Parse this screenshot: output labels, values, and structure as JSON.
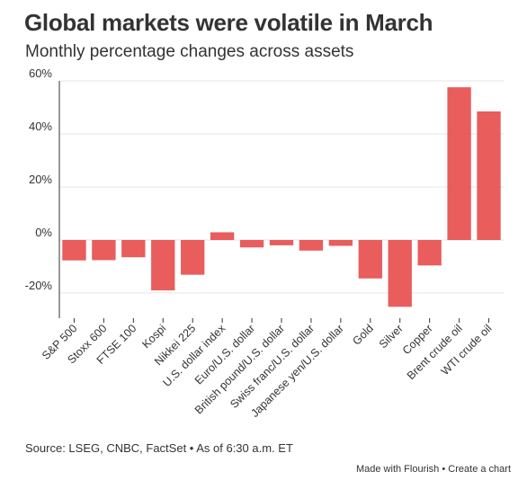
{
  "title": "Global markets were volatile in March",
  "subtitle": "Monthly percentage changes across assets",
  "source": "Source: LSEG, CNBC, FactSet • As of 6:30 a.m. ET",
  "credit": {
    "made_with": "Made with Flourish",
    "separator": "•",
    "create": "Create a chart"
  },
  "colors": {
    "bar": "#e85454",
    "grid": "#e6e6e6",
    "axis": "#333333"
  },
  "chart_data": {
    "type": "bar",
    "categories": [
      "S&P 500",
      "Stoxx 600",
      "FTSE 100",
      "Kospi",
      "Nikkei 225",
      "U.S. dollar index",
      "Euro/U.S. dollar",
      "British pound/U.S. dollar",
      "Swiss franc/U.S. dollar",
      "Japanese yen/U.S. dollar",
      "Gold",
      "Silver",
      "Copper",
      "Brent crude oil",
      "WTI crude oil"
    ],
    "series": [
      {
        "values": [
          -7.7,
          -7.6,
          -6.5,
          -19.0,
          -13.1,
          2.9,
          -2.8,
          -2.0,
          -4.0,
          -2.2,
          -14.5,
          -25.2,
          -9.6,
          57.6,
          48.5
        ]
      }
    ],
    "ylim": [
      -30,
      60
    ],
    "yticks": [
      -20,
      0,
      20,
      40,
      60
    ],
    "ytick_labels": [
      "-20%",
      "0%",
      "20%",
      "40%",
      "60%"
    ],
    "grid": true
  }
}
